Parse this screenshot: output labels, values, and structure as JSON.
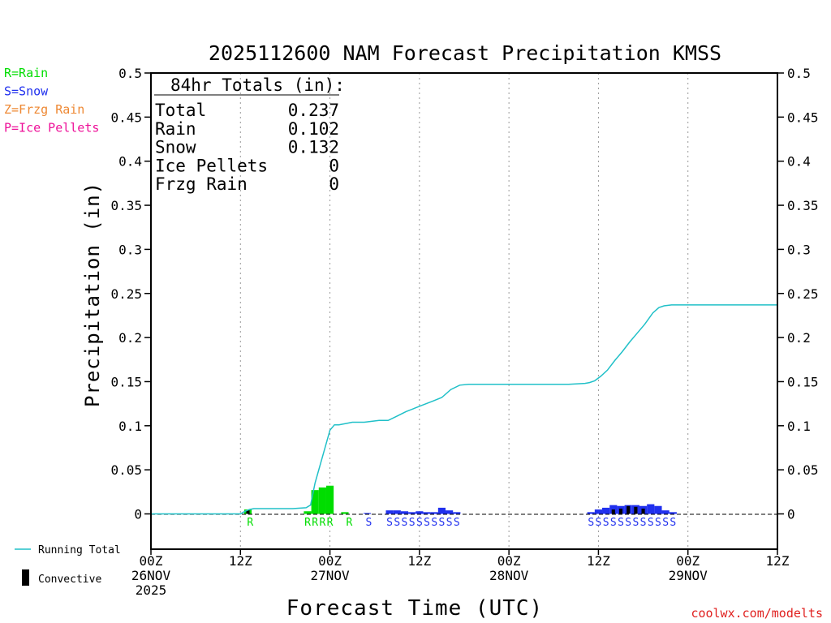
{
  "chart_data": {
    "type": "bar",
    "title": "2025112600 NAM Forecast Precipitation KMSS",
    "xlabel": "Forecast Time (UTC)",
    "ylabel": "Precipitation (in)",
    "ylim": [
      -0.04,
      0.5
    ],
    "xlim_hours": [
      0,
      84
    ],
    "y_ticks": [
      "0.5",
      "0.45",
      "0.4",
      "0.35",
      "0.3",
      "0.25",
      "0.2",
      "0.15",
      "0.1",
      "0.05",
      "0"
    ],
    "y_tick_values": [
      0.5,
      0.45,
      0.4,
      0.35,
      0.3,
      0.25,
      0.2,
      0.15,
      0.1,
      0.05,
      0
    ],
    "x_ticks": [
      {
        "hour": 0,
        "lines": [
          "00Z",
          "26NOV",
          "2025"
        ]
      },
      {
        "hour": 12,
        "lines": [
          "12Z"
        ]
      },
      {
        "hour": 24,
        "lines": [
          "00Z",
          "27NOV"
        ]
      },
      {
        "hour": 36,
        "lines": [
          "12Z"
        ]
      },
      {
        "hour": 48,
        "lines": [
          "00Z",
          "28NOV"
        ]
      },
      {
        "hour": 60,
        "lines": [
          "12Z"
        ]
      },
      {
        "hour": 72,
        "lines": [
          "00Z",
          "29NOV"
        ]
      },
      {
        "hour": 84,
        "lines": [
          "12Z"
        ]
      }
    ],
    "grid_hours": [
      12,
      24,
      36,
      48,
      60,
      72
    ],
    "grid": true,
    "series": [
      {
        "name": "Rain",
        "color": "#00dd00",
        "bars": [
          {
            "hour": 13,
            "value": 0.005
          },
          {
            "hour": 21,
            "value": 0.003
          },
          {
            "hour": 22,
            "value": 0.027
          },
          {
            "hour": 23,
            "value": 0.03
          },
          {
            "hour": 24,
            "value": 0.032
          },
          {
            "hour": 26,
            "value": 0.002
          }
        ]
      },
      {
        "name": "Snow",
        "color": "#2030ee",
        "bars": [
          {
            "hour": 29,
            "value": 0.001
          },
          {
            "hour": 32,
            "value": 0.004
          },
          {
            "hour": 33,
            "value": 0.004
          },
          {
            "hour": 34,
            "value": 0.003
          },
          {
            "hour": 35,
            "value": 0.002
          },
          {
            "hour": 36,
            "value": 0.003
          },
          {
            "hour": 37,
            "value": 0.002
          },
          {
            "hour": 38,
            "value": 0.002
          },
          {
            "hour": 39,
            "value": 0.007
          },
          {
            "hour": 40,
            "value": 0.004
          },
          {
            "hour": 41,
            "value": 0.002
          },
          {
            "hour": 59,
            "value": 0.002
          },
          {
            "hour": 60,
            "value": 0.005
          },
          {
            "hour": 61,
            "value": 0.007
          },
          {
            "hour": 62,
            "value": 0.01
          },
          {
            "hour": 63,
            "value": 0.009
          },
          {
            "hour": 64,
            "value": 0.01
          },
          {
            "hour": 65,
            "value": 0.01
          },
          {
            "hour": 66,
            "value": 0.009
          },
          {
            "hour": 67,
            "value": 0.011
          },
          {
            "hour": 68,
            "value": 0.009
          },
          {
            "hour": 69,
            "value": 0.004
          },
          {
            "hour": 70,
            "value": 0.002
          }
        ]
      },
      {
        "name": "Convective",
        "color": "#000000",
        "bars": [
          {
            "hour": 13,
            "value": 0.004
          },
          {
            "hour": 62,
            "value": 0.005
          },
          {
            "hour": 63,
            "value": 0.006
          },
          {
            "hour": 64,
            "value": 0.009
          },
          {
            "hour": 65,
            "value": 0.008
          },
          {
            "hour": 66,
            "value": 0.006
          }
        ]
      },
      {
        "name": "Running Total",
        "type": "line",
        "color": "#20c0c8",
        "points": [
          [
            0,
            0
          ],
          [
            12,
            0
          ],
          [
            12.6,
            0.003
          ],
          [
            13.2,
            0.005
          ],
          [
            13.8,
            0.006
          ],
          [
            15,
            0.006
          ],
          [
            17,
            0.006
          ],
          [
            19,
            0.006
          ],
          [
            20.8,
            0.007
          ],
          [
            21.4,
            0.01
          ],
          [
            22,
            0.035
          ],
          [
            23,
            0.065
          ],
          [
            24,
            0.095
          ],
          [
            24.6,
            0.101
          ],
          [
            25.2,
            0.101
          ],
          [
            26.4,
            0.103
          ],
          [
            27,
            0.104
          ],
          [
            28.6,
            0.104
          ],
          [
            29.6,
            0.105
          ],
          [
            30.6,
            0.106
          ],
          [
            31.8,
            0.106
          ],
          [
            33,
            0.111
          ],
          [
            34.2,
            0.116
          ],
          [
            35.4,
            0.12
          ],
          [
            36.6,
            0.124
          ],
          [
            37.8,
            0.128
          ],
          [
            39,
            0.132
          ],
          [
            40.2,
            0.141
          ],
          [
            41.4,
            0.146
          ],
          [
            42.6,
            0.147
          ],
          [
            44,
            0.147
          ],
          [
            48,
            0.147
          ],
          [
            56,
            0.147
          ],
          [
            58.2,
            0.148
          ],
          [
            58.8,
            0.149
          ],
          [
            59.5,
            0.151
          ],
          [
            60.3,
            0.156
          ],
          [
            61.2,
            0.163
          ],
          [
            62.2,
            0.174
          ],
          [
            63.2,
            0.184
          ],
          [
            64.2,
            0.195
          ],
          [
            65.2,
            0.205
          ],
          [
            66.2,
            0.215
          ],
          [
            67.3,
            0.228
          ],
          [
            68.1,
            0.234
          ],
          [
            68.8,
            0.236
          ],
          [
            69.8,
            0.237
          ],
          [
            84,
            0.237
          ]
        ]
      }
    ],
    "ptype_markers": [
      {
        "hour": 13.3,
        "letter": "R",
        "color": "#00dd00"
      },
      {
        "hour": 21,
        "letter": "R",
        "color": "#00dd00"
      },
      {
        "hour": 22,
        "letter": "R",
        "color": "#00dd00"
      },
      {
        "hour": 23,
        "letter": "R",
        "color": "#00dd00"
      },
      {
        "hour": 24,
        "letter": "R",
        "color": "#00dd00"
      },
      {
        "hour": 26.6,
        "letter": "R",
        "color": "#00dd00"
      },
      {
        "hour": 29.2,
        "letter": "S",
        "color": "#2030ee"
      },
      {
        "hour": 32,
        "letter": "S",
        "color": "#2030ee"
      },
      {
        "hour": 33,
        "letter": "S",
        "color": "#2030ee"
      },
      {
        "hour": 34,
        "letter": "S",
        "color": "#2030ee"
      },
      {
        "hour": 35,
        "letter": "S",
        "color": "#2030ee"
      },
      {
        "hour": 36,
        "letter": "S",
        "color": "#2030ee"
      },
      {
        "hour": 37,
        "letter": "S",
        "color": "#2030ee"
      },
      {
        "hour": 38,
        "letter": "S",
        "color": "#2030ee"
      },
      {
        "hour": 39,
        "letter": "S",
        "color": "#2030ee"
      },
      {
        "hour": 40,
        "letter": "S",
        "color": "#2030ee"
      },
      {
        "hour": 41,
        "letter": "S",
        "color": "#2030ee"
      },
      {
        "hour": 59,
        "letter": "S",
        "color": "#2030ee"
      },
      {
        "hour": 60,
        "letter": "S",
        "color": "#2030ee"
      },
      {
        "hour": 61,
        "letter": "S",
        "color": "#2030ee"
      },
      {
        "hour": 62,
        "letter": "S",
        "color": "#2030ee"
      },
      {
        "hour": 63,
        "letter": "S",
        "color": "#2030ee"
      },
      {
        "hour": 64,
        "letter": "S",
        "color": "#2030ee"
      },
      {
        "hour": 65,
        "letter": "S",
        "color": "#2030ee"
      },
      {
        "hour": 66,
        "letter": "S",
        "color": "#2030ee"
      },
      {
        "hour": 67,
        "letter": "S",
        "color": "#2030ee"
      },
      {
        "hour": 68,
        "letter": "S",
        "color": "#2030ee"
      },
      {
        "hour": 69,
        "letter": "S",
        "color": "#2030ee"
      },
      {
        "hour": 70,
        "letter": "S",
        "color": "#2030ee"
      }
    ],
    "totals_box": {
      "heading": "84hr Totals (in):",
      "rows": [
        {
          "label": "Total",
          "value": "0.237"
        },
        {
          "label": "Rain",
          "value": "0.102"
        },
        {
          "label": "Snow",
          "value": "0.132"
        },
        {
          "label": "Ice Pellets",
          "value": "0"
        },
        {
          "label": "Frzg Rain",
          "value": "0"
        }
      ]
    },
    "ptype_legend": [
      {
        "text": "R=Rain",
        "color": "#00dd00"
      },
      {
        "text": "S=Snow",
        "color": "#2030ee"
      },
      {
        "text": "Z=Frzg Rain",
        "color": "#ee8833"
      },
      {
        "text": "P=Ice Pellets",
        "color": "#ee1199"
      }
    ],
    "series_legend": {
      "running_total": "Running Total",
      "convective": "Convective"
    },
    "credit": "coolwx.com/modelts"
  }
}
